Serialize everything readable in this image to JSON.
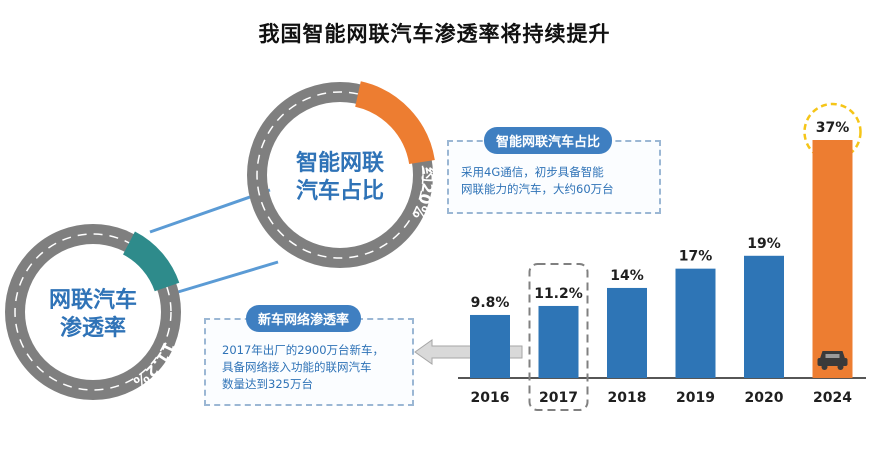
{
  "title": "我国智能网联汽车渗透率将持续提升",
  "rings": {
    "big": {
      "label_line1": "网联汽车",
      "label_line2": "渗透率",
      "badge": "11.2%"
    },
    "small": {
      "label_line1": "智能网联",
      "label_line2": "汽车占比",
      "badge": "约20%"
    }
  },
  "callouts": {
    "smart": {
      "title": "智能网联汽车占比",
      "line1": "采用4G通信，初步具备智能",
      "line2": "网联能力的汽车，大约60万台"
    },
    "new_car": {
      "title": "新车网络渗透率",
      "line1": "2017年出厂的2900万台新车，",
      "line2": "具备网络接入功能的联网汽车",
      "line3": "数量达到325万台"
    }
  },
  "colors": {
    "blue": "#2e75b6",
    "orange": "#ed7d31",
    "teal": "#2e8b8b",
    "road": "#7f7f7f",
    "gold": "#f5c518"
  },
  "chart_data": {
    "type": "bar",
    "title": "",
    "categories": [
      "2016",
      "2017",
      "2018",
      "2019",
      "2020",
      "2024"
    ],
    "values": [
      9.8,
      11.2,
      14,
      17,
      19,
      37
    ],
    "labels": [
      "9.8%",
      "11.2%",
      "14%",
      "17%",
      "19%",
      "37%"
    ],
    "highlight_category": "2017",
    "forecast_category": "2024",
    "xlabel": "",
    "ylabel": "",
    "ylim": [
      0,
      40
    ],
    "grid": false
  }
}
